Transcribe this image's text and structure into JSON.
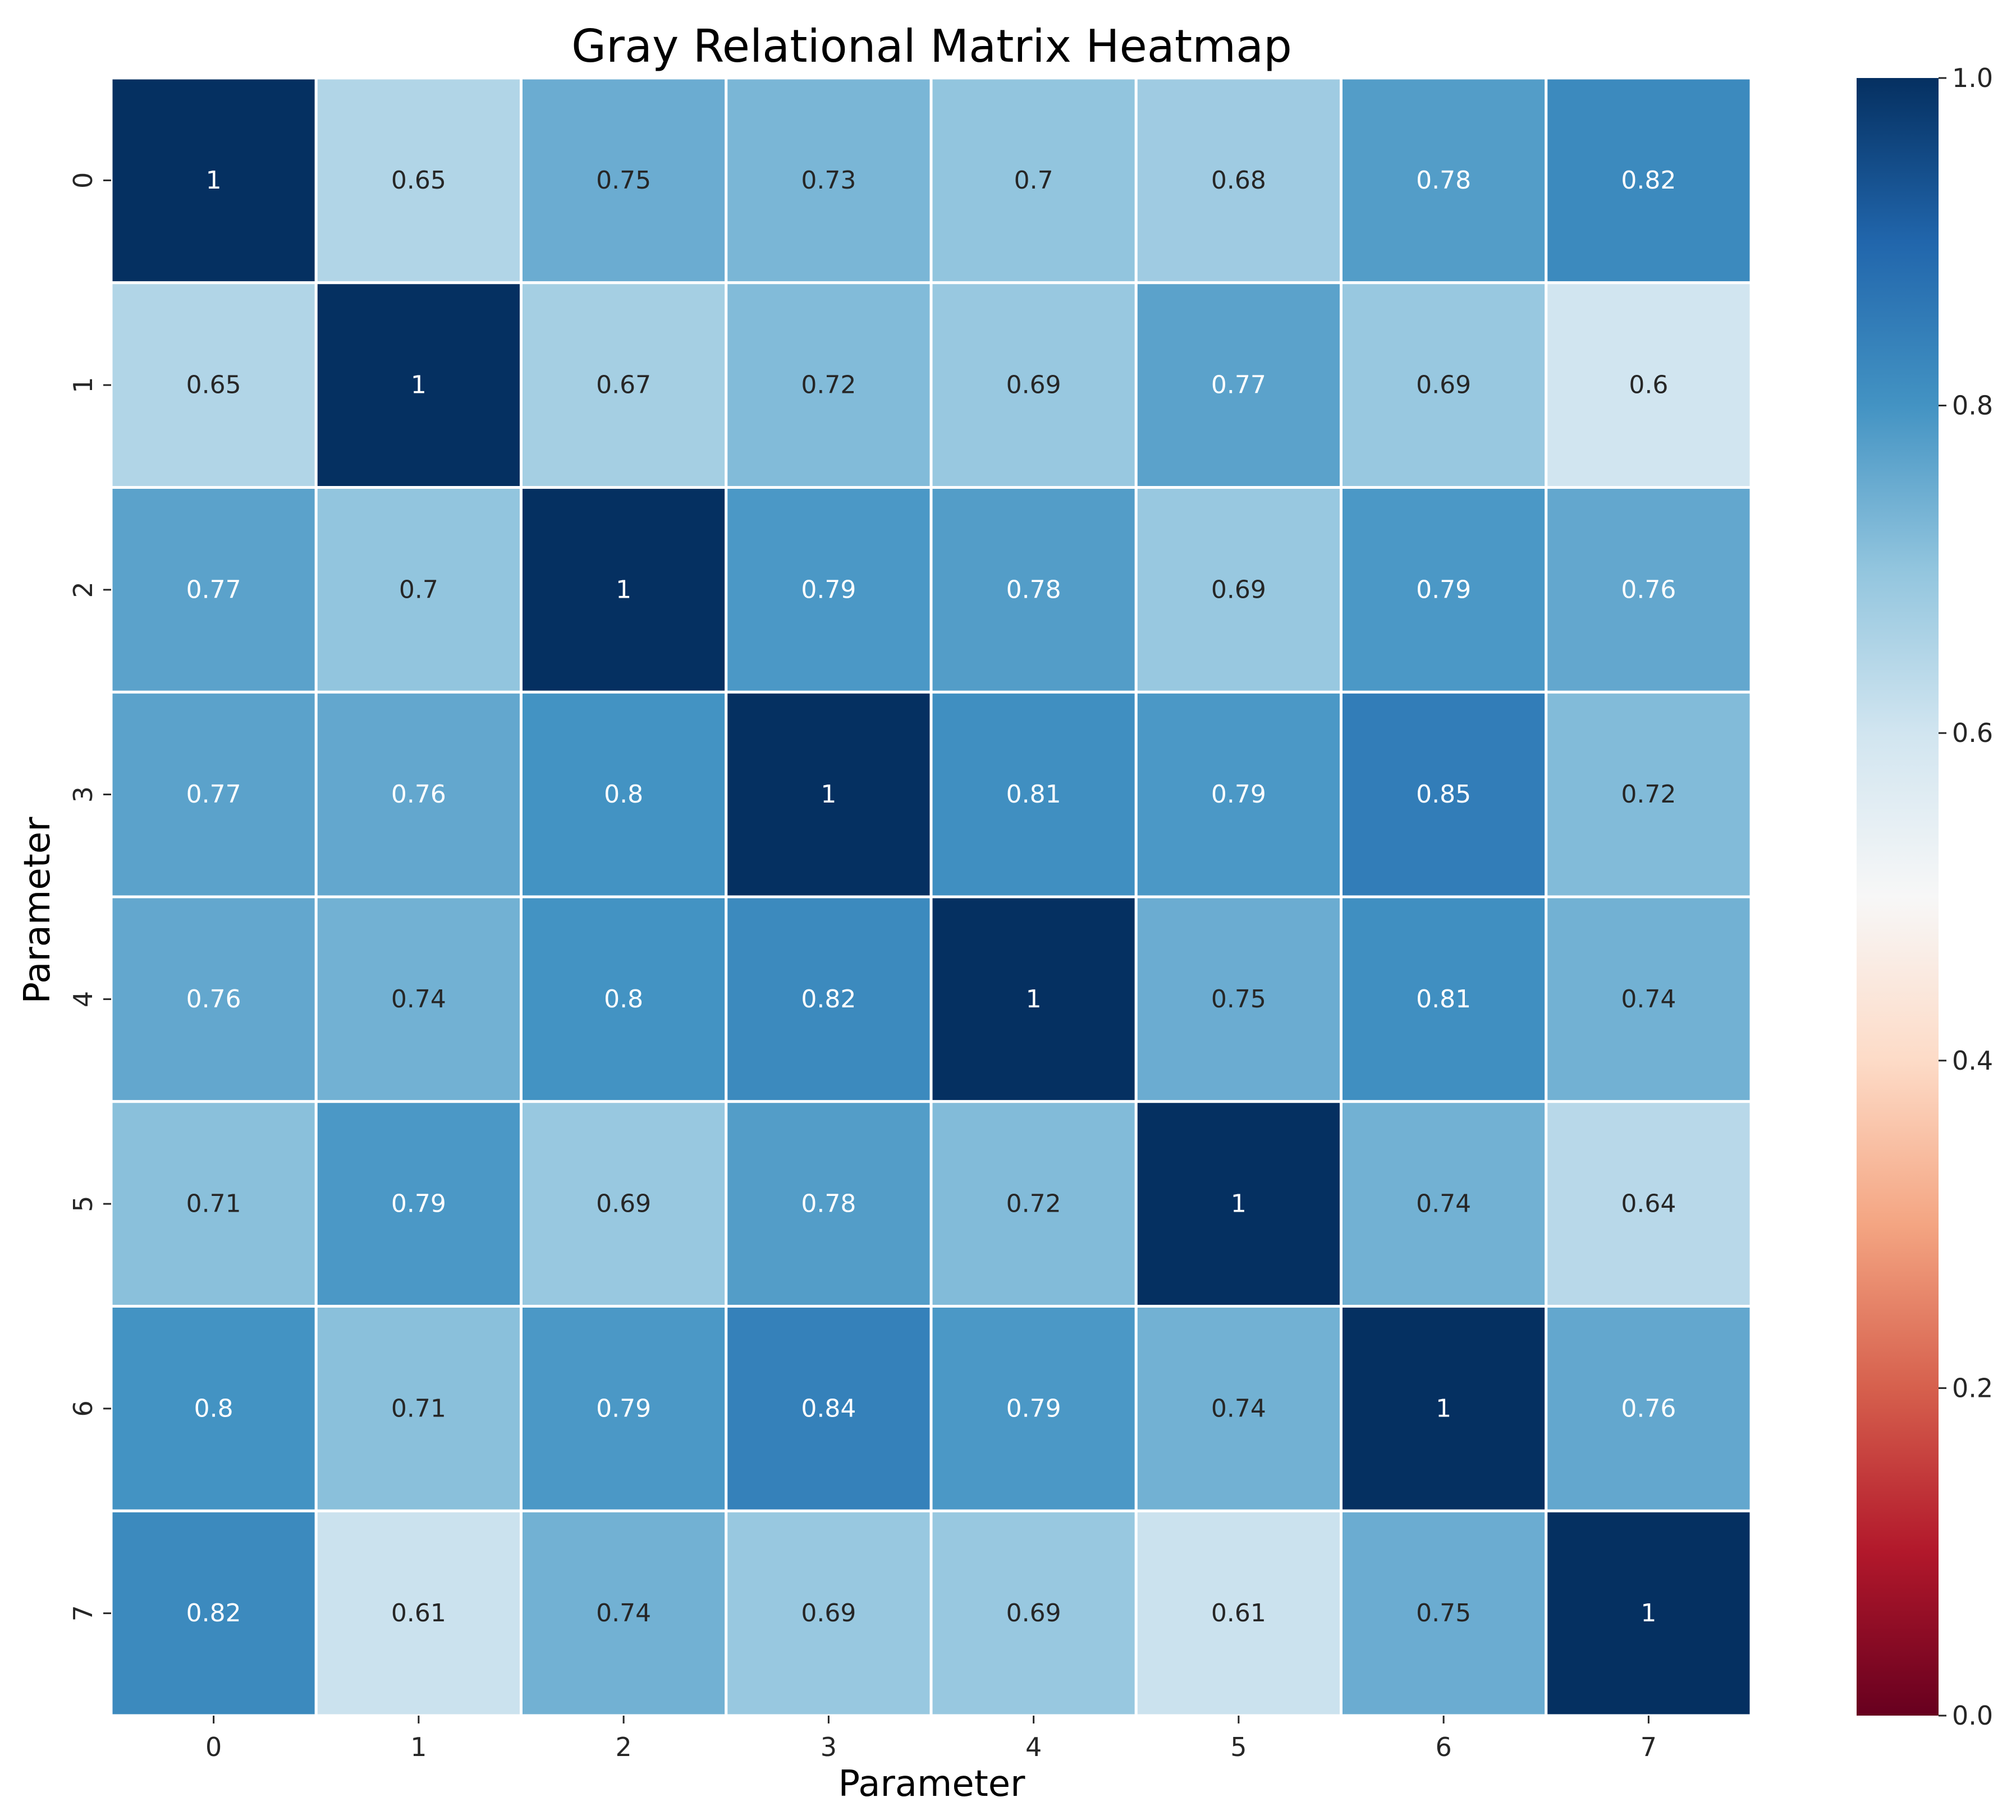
{
  "chart_data": {
    "type": "heatmap",
    "title": "Gray Relational Matrix Heatmap",
    "xlabel": "Parameter",
    "ylabel": "Parameter",
    "x_categories": [
      "0",
      "1",
      "2",
      "3",
      "4",
      "5",
      "6",
      "7"
    ],
    "y_categories": [
      "0",
      "1",
      "2",
      "3",
      "4",
      "5",
      "6",
      "7"
    ],
    "values": [
      [
        1,
        0.65,
        0.75,
        0.73,
        0.7,
        0.68,
        0.78,
        0.82
      ],
      [
        0.65,
        1,
        0.67,
        0.72,
        0.69,
        0.77,
        0.69,
        0.6
      ],
      [
        0.77,
        0.7,
        1,
        0.79,
        0.78,
        0.69,
        0.79,
        0.76
      ],
      [
        0.77,
        0.76,
        0.8,
        1,
        0.81,
        0.79,
        0.85,
        0.72
      ],
      [
        0.76,
        0.74,
        0.8,
        0.82,
        1,
        0.75,
        0.81,
        0.74
      ],
      [
        0.71,
        0.79,
        0.69,
        0.78,
        0.72,
        1,
        0.74,
        0.64
      ],
      [
        0.8,
        0.71,
        0.79,
        0.84,
        0.79,
        0.74,
        1,
        0.76
      ],
      [
        0.82,
        0.61,
        0.74,
        0.69,
        0.69,
        0.61,
        0.75,
        1
      ]
    ],
    "value_labels": [
      [
        "1",
        "0.65",
        "0.75",
        "0.73",
        "0.7",
        "0.68",
        "0.78",
        "0.82"
      ],
      [
        "0.65",
        "1",
        "0.67",
        "0.72",
        "0.69",
        "0.77",
        "0.69",
        "0.6"
      ],
      [
        "0.77",
        "0.7",
        "1",
        "0.79",
        "0.78",
        "0.69",
        "0.79",
        "0.76"
      ],
      [
        "0.77",
        "0.76",
        "0.8",
        "1",
        "0.81",
        "0.79",
        "0.85",
        "0.72"
      ],
      [
        "0.76",
        "0.74",
        "0.8",
        "0.82",
        "1",
        "0.75",
        "0.81",
        "0.74"
      ],
      [
        "0.71",
        "0.79",
        "0.69",
        "0.78",
        "0.72",
        "1",
        "0.74",
        "0.64"
      ],
      [
        "0.8",
        "0.71",
        "0.79",
        "0.84",
        "0.79",
        "0.74",
        "1",
        "0.76"
      ],
      [
        "0.82",
        "0.61",
        "0.74",
        "0.69",
        "0.69",
        "0.61",
        "0.75",
        "1"
      ]
    ],
    "colormap": "RdBu",
    "vmin": 0.0,
    "vmax": 1.0,
    "colorbar_ticks": [
      "0.0",
      "0.2",
      "0.4",
      "0.6",
      "0.8",
      "1.0"
    ],
    "colorbar_tick_values": [
      0.0,
      0.2,
      0.4,
      0.6,
      0.8,
      1.0
    ],
    "annotations": true,
    "grid_lines": "white"
  }
}
